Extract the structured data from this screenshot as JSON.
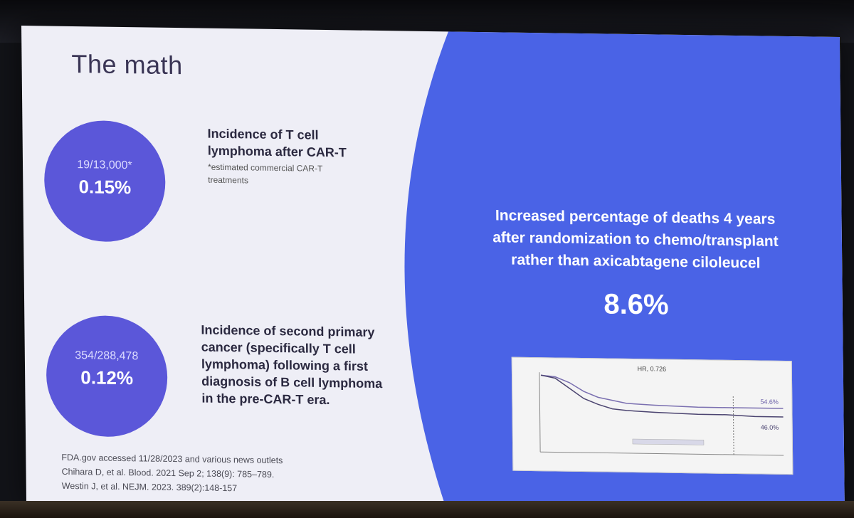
{
  "slide": {
    "title": "The math",
    "stat1": {
      "fraction": "19/13,000*",
      "percent": "0.15%",
      "heading_lines": [
        "Incidence of T cell",
        "lymphoma after CAR-T"
      ],
      "note_lines": [
        "*estimated commercial CAR-T",
        "treatments"
      ]
    },
    "stat2": {
      "fraction": "354/288,478",
      "percent": "0.12%",
      "heading_lines": [
        "Incidence of second primary",
        "cancer (specifically T cell",
        "lymphoma) following a first",
        "diagnosis of B cell lymphoma",
        "in the pre-CAR-T era."
      ]
    },
    "references": [
      "FDA.gov accessed 11/28/2023 and various news outlets",
      "Chihara D, et al. Blood. 2021 Sep 2; 138(9): 785–789.",
      "Westin J, et al. NEJM. 2023. 389(2):148-157"
    ],
    "right_panel": {
      "lines": [
        "Increased percentage of deaths 4 years",
        "after randomization to chemo/transplant",
        "rather than axicabtagene ciloleucel"
      ],
      "big_percent": "8.6%"
    },
    "km_plot": {
      "hr_label": "HR, 0.726",
      "arm_upper_label": "54.6%",
      "arm_lower_label": "46.0%"
    }
  },
  "colors": {
    "slide_bg": "#eeeef6",
    "blue_panel": "#4a63e6",
    "circle": "#5b57d9",
    "title": "#3a3555"
  }
}
